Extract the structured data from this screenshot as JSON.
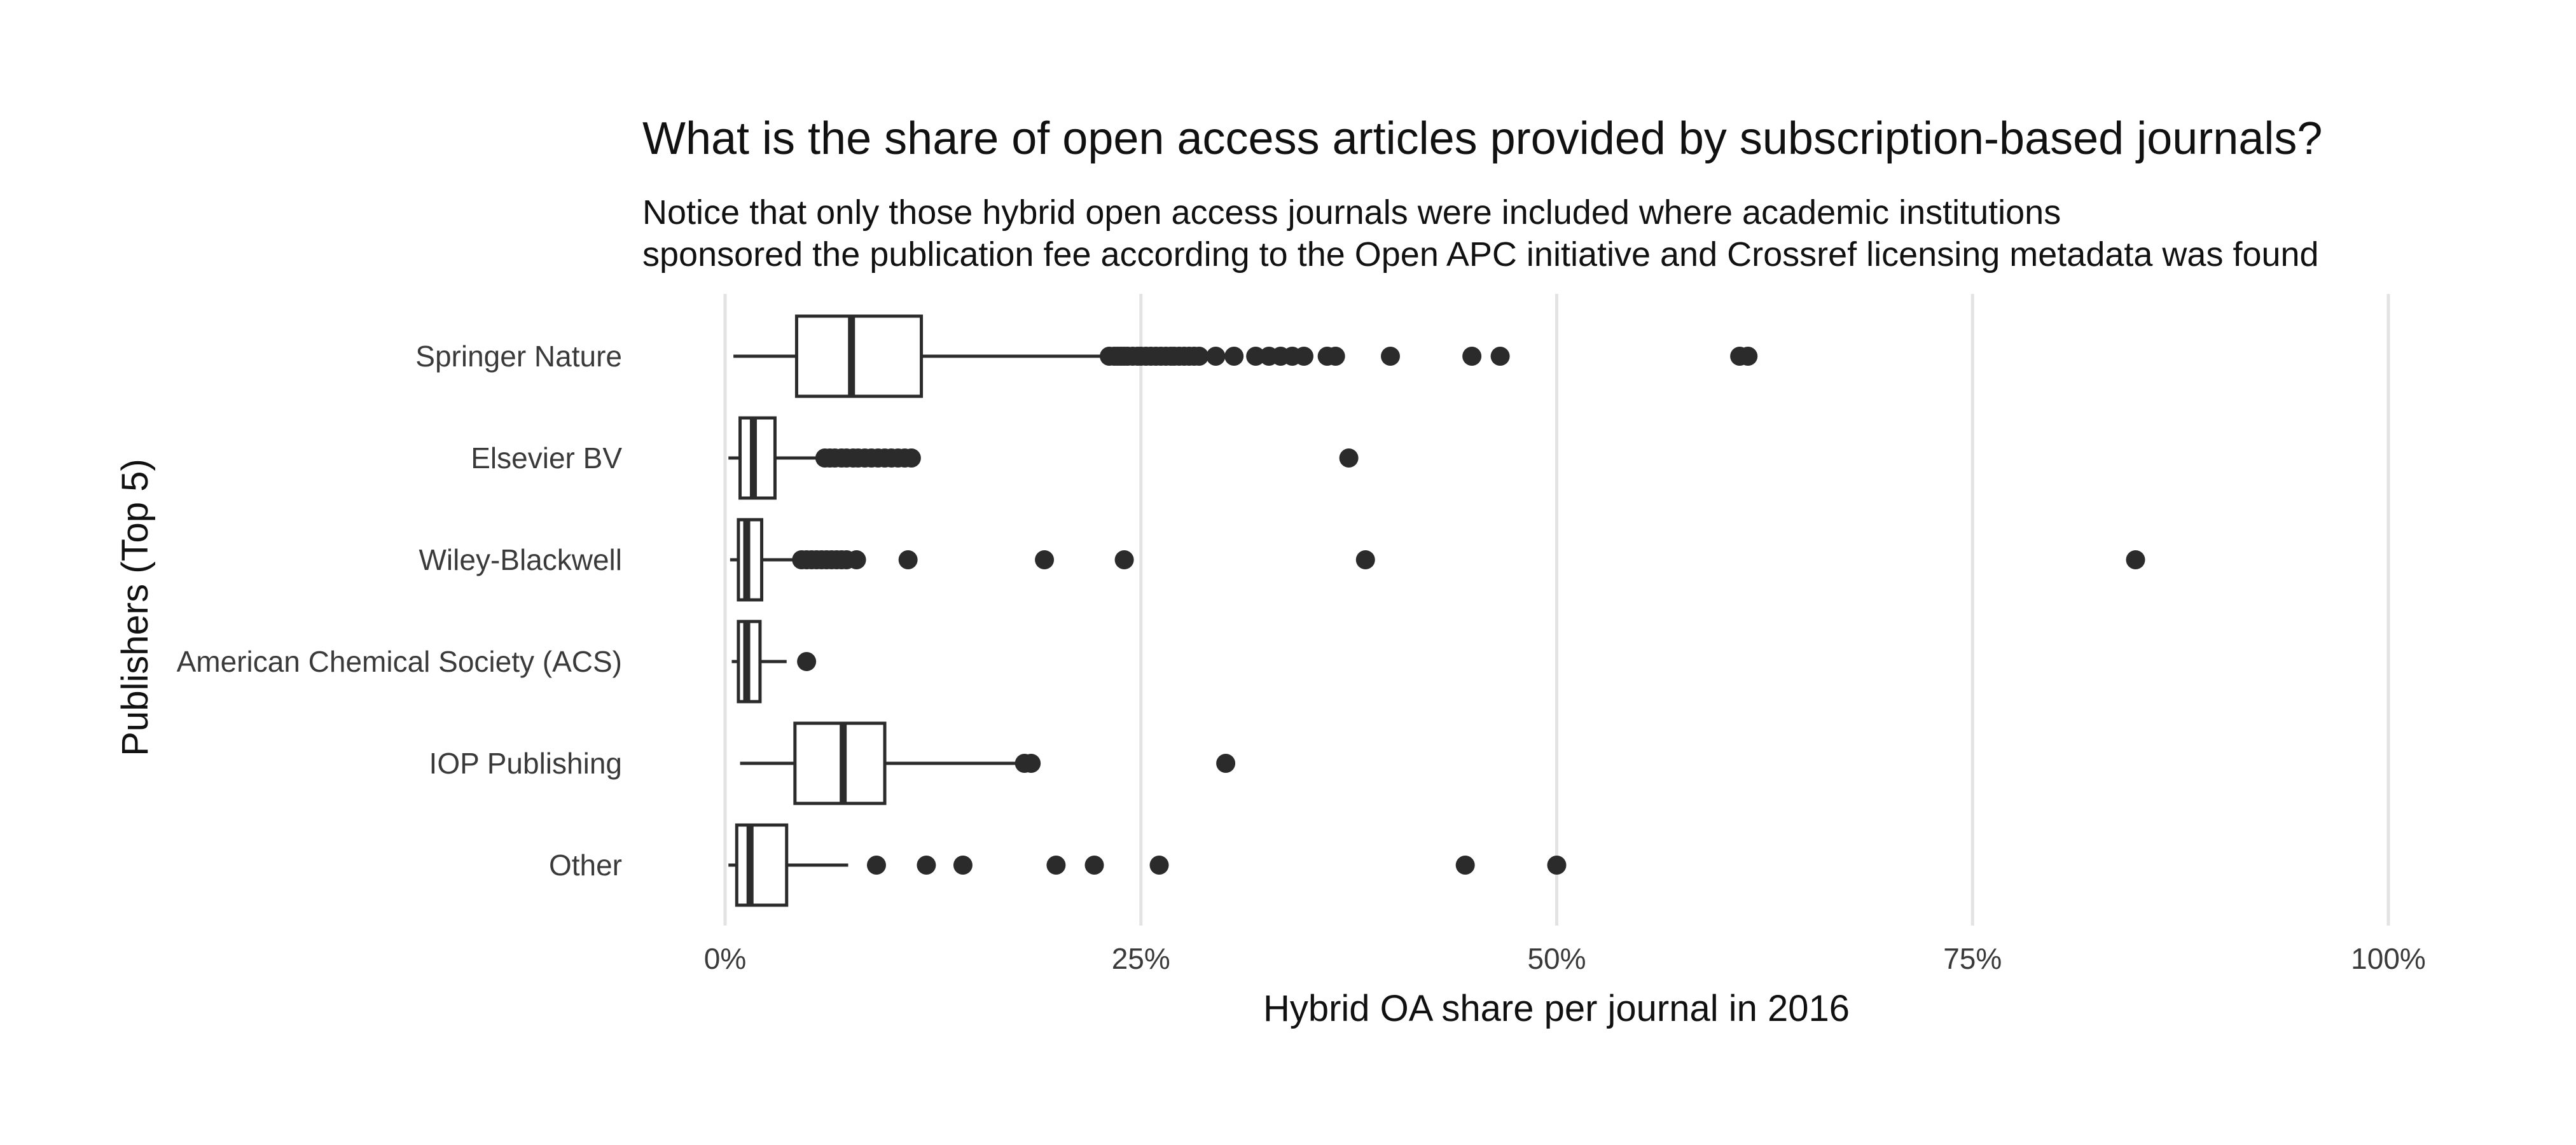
{
  "chart_data": {
    "type": "boxplot",
    "title": "What is the share of open access articles provided by subscription-based journals?",
    "subtitle_lines": [
      "Notice that only those hybrid open access journals were included where academic institutions",
      "sponsored the publication fee according to the Open APC initiative and Crossref licensing metadata was found"
    ],
    "xlabel": "Hybrid OA share per journal in 2016",
    "ylabel": "Publishers (Top 5)",
    "xlim": [
      0,
      1
    ],
    "x_ticks": [
      {
        "value": 0,
        "label": "0%"
      },
      {
        "value": 0.25,
        "label": "25%"
      },
      {
        "value": 0.5,
        "label": "50%"
      },
      {
        "value": 0.75,
        "label": "75%"
      },
      {
        "value": 1.0,
        "label": "100%"
      }
    ],
    "grid": "vertical major lines",
    "orientation": "horizontal",
    "colors": {
      "box_fill": "#ffffff",
      "line": "#2b2b2b",
      "grid": "#e3e3e3"
    },
    "series": [
      {
        "category": "Springer Nature",
        "whisker_low": 0.005,
        "q1": 0.043,
        "median": 0.076,
        "q3": 0.118,
        "whisker_high": 0.228,
        "outliers": [
          0.231,
          0.234,
          0.236,
          0.238,
          0.24,
          0.242,
          0.245,
          0.248,
          0.25,
          0.253,
          0.256,
          0.259,
          0.262,
          0.265,
          0.268,
          0.27,
          0.273,
          0.276,
          0.279,
          0.282,
          0.285,
          0.295,
          0.306,
          0.319,
          0.327,
          0.334,
          0.341,
          0.348,
          0.362,
          0.367,
          0.4,
          0.449,
          0.466,
          0.61,
          0.615
        ]
      },
      {
        "category": "Elsevier BV",
        "whisker_low": 0.002,
        "q1": 0.009,
        "median": 0.017,
        "q3": 0.03,
        "whisker_high": 0.058,
        "outliers": [
          0.06,
          0.063,
          0.066,
          0.07,
          0.073,
          0.077,
          0.08,
          0.084,
          0.088,
          0.092,
          0.096,
          0.1,
          0.104,
          0.108,
          0.112,
          0.375
        ]
      },
      {
        "category": "Wiley-Blackwell",
        "whisker_low": 0.003,
        "q1": 0.008,
        "median": 0.013,
        "q3": 0.022,
        "whisker_high": 0.043,
        "outliers": [
          0.046,
          0.049,
          0.052,
          0.055,
          0.058,
          0.061,
          0.064,
          0.067,
          0.07,
          0.073,
          0.079,
          0.11,
          0.192,
          0.24,
          0.385,
          0.848
        ]
      },
      {
        "category": "American Chemical Society (ACS)",
        "whisker_low": 0.004,
        "q1": 0.008,
        "median": 0.013,
        "q3": 0.021,
        "whisker_high": 0.037,
        "outliers": [
          0.049
        ]
      },
      {
        "category": "IOP Publishing",
        "whisker_low": 0.009,
        "q1": 0.042,
        "median": 0.071,
        "q3": 0.096,
        "whisker_high": 0.18,
        "outliers": [
          0.18,
          0.184,
          0.301
        ]
      },
      {
        "category": "Other",
        "whisker_low": 0.002,
        "q1": 0.007,
        "median": 0.015,
        "q3": 0.037,
        "whisker_high": 0.074,
        "outliers": [
          0.091,
          0.121,
          0.143,
          0.199,
          0.222,
          0.261,
          0.445,
          0.5
        ]
      }
    ]
  }
}
